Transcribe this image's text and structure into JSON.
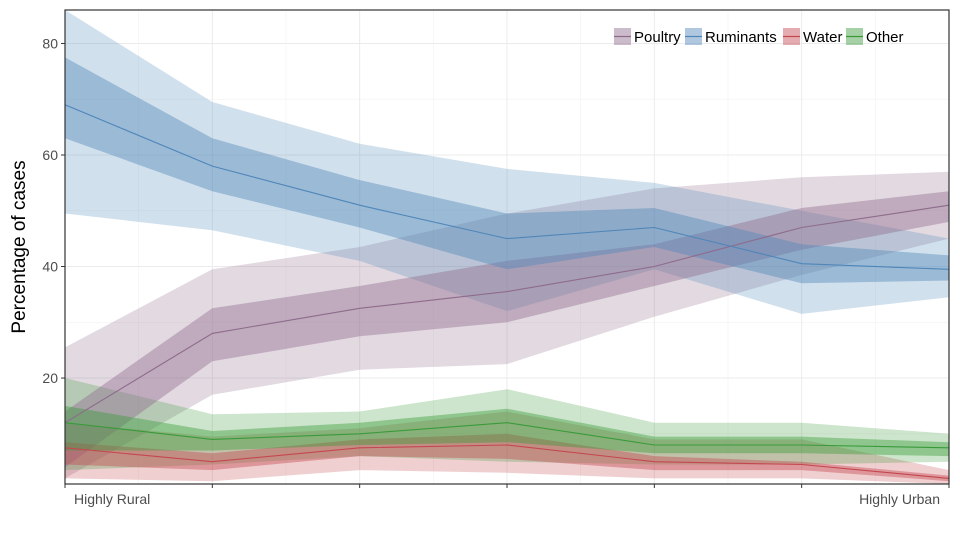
{
  "chart_data": {
    "type": "area",
    "title": "",
    "xlabel": "",
    "ylabel": "Percentage of cases",
    "x": [
      1,
      2,
      3,
      4,
      5,
      6,
      7
    ],
    "x_tick_labels": [
      {
        "x": 1,
        "label": "Highly Rural"
      },
      {
        "x": 7,
        "label": "Highly Urban"
      }
    ],
    "xlim": [
      1,
      7
    ],
    "ylim": [
      1,
      86
    ],
    "y_ticks": [
      20,
      40,
      60,
      80
    ],
    "grid": true,
    "legend_position": "top-right",
    "series": [
      {
        "name": "Poultry",
        "color": "#8e6b8c",
        "values": [
          12,
          28,
          32.5,
          35.5,
          40,
          47,
          51
        ],
        "inner_lower": [
          4,
          23,
          27.5,
          30,
          36.5,
          43,
          48
        ],
        "inner_upper": [
          14,
          32.5,
          36.5,
          41,
          44,
          50.5,
          53.5
        ],
        "outer_lower": [
          2,
          17,
          21.5,
          22.5,
          31,
          38.5,
          45
        ],
        "outer_upper": [
          25.5,
          39.5,
          43.5,
          49.5,
          54,
          56,
          57
        ]
      },
      {
        "name": "Ruminants",
        "color": "#4f86b8",
        "values": [
          69,
          58,
          51,
          45,
          47,
          40.5,
          39.5
        ],
        "inner_lower": [
          63,
          53.5,
          47,
          39.5,
          43.5,
          37,
          37.5
        ],
        "inner_upper": [
          77.5,
          63,
          55.5,
          49.5,
          50.5,
          44,
          42
        ],
        "outer_lower": [
          49.5,
          46.5,
          41,
          32,
          39.5,
          31.5,
          34.5
        ],
        "outer_upper": [
          86,
          69.5,
          62,
          57.5,
          55,
          50,
          45
        ]
      },
      {
        "name": "Water",
        "color": "#c4474f",
        "values": [
          7.5,
          5,
          7.5,
          8,
          5,
          4.5,
          2
        ],
        "inner_lower": [
          4.5,
          3.5,
          6,
          5.5,
          3.5,
          3.5,
          1.5
        ],
        "inner_upper": [
          8.5,
          6.5,
          9,
          10,
          6,
          5,
          2.5
        ],
        "outer_lower": [
          2,
          1.5,
          3.5,
          3,
          2,
          2,
          1
        ],
        "outer_upper": [
          12,
          9.5,
          11,
          14,
          9,
          9,
          3.5
        ]
      },
      {
        "name": "Other",
        "color": "#3a9a3a",
        "values": [
          12,
          9,
          10,
          12,
          8,
          8,
          7.5
        ],
        "inner_lower": [
          7,
          7,
          8,
          8.5,
          6.5,
          6.5,
          6
        ],
        "inner_upper": [
          15,
          10.5,
          12,
          14.5,
          9.5,
          9.5,
          8.5
        ],
        "outer_lower": [
          3.5,
          4.5,
          6,
          5,
          4.5,
          4.5,
          5
        ],
        "outer_upper": [
          20,
          13.5,
          14,
          18,
          12,
          12,
          10
        ]
      }
    ]
  }
}
